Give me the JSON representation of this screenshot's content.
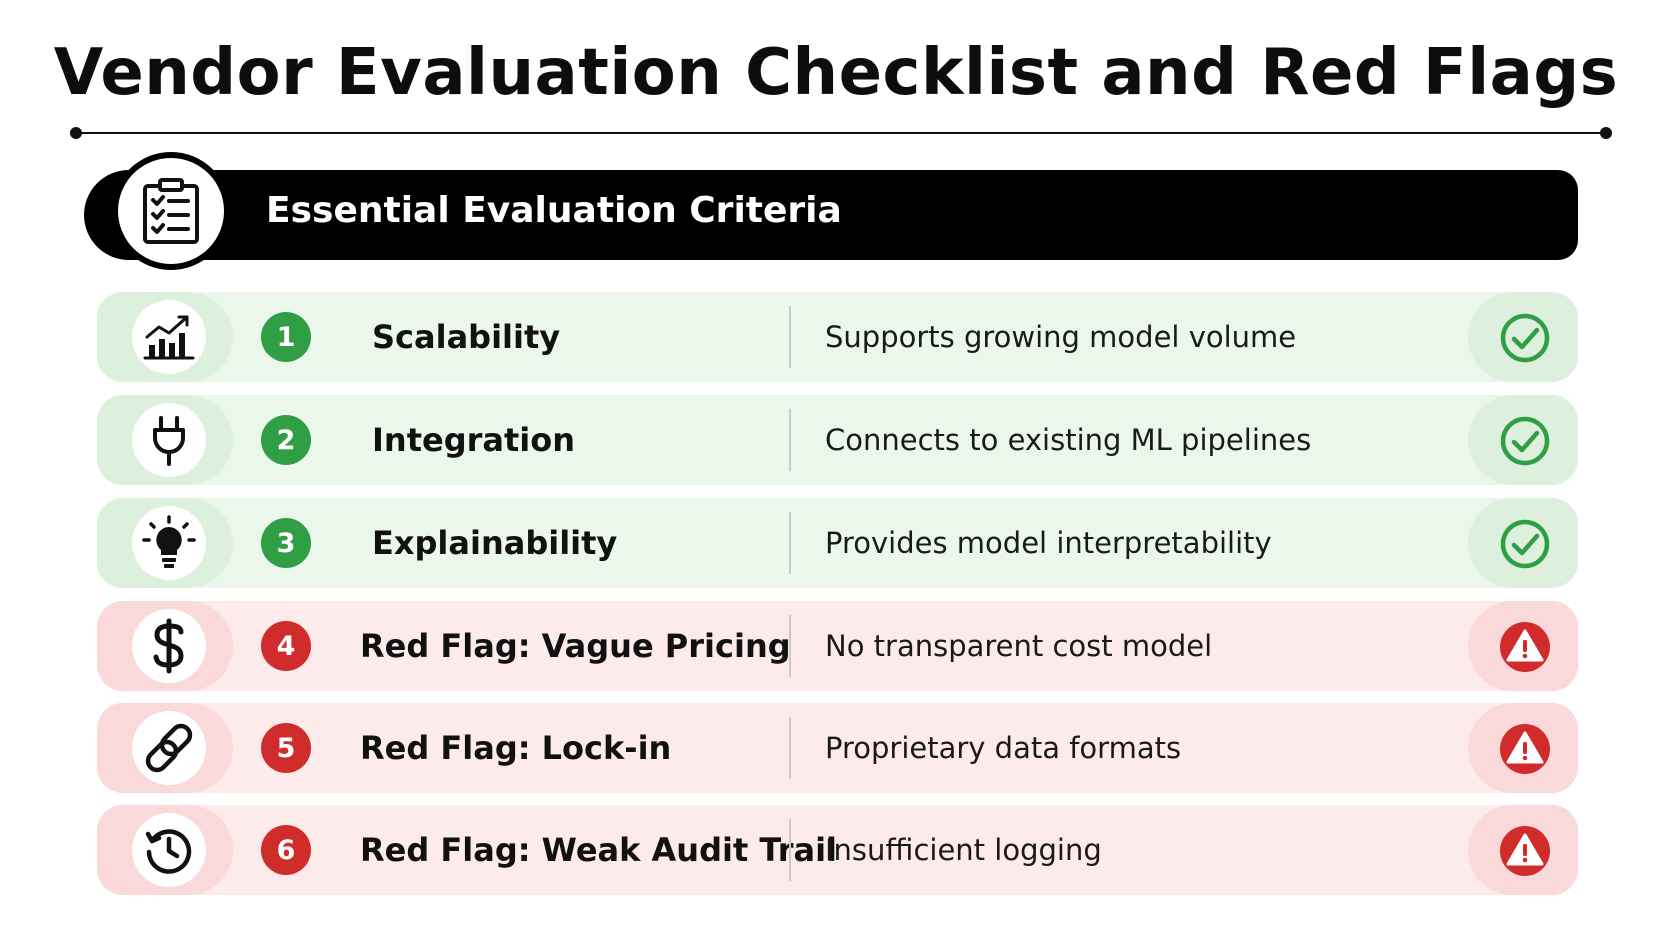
{
  "title": "Vendor Evaluation Checklist and Red Flags",
  "section": {
    "heading": "Essential Evaluation Criteria",
    "icon": "clipboard-checklist-icon"
  },
  "colors": {
    "good_accent": "#2f9e44",
    "good_row": "#ecf7ec",
    "flag_accent": "#d12c2c",
    "flag_row": "#fdeaea",
    "header_bar": "#000000"
  },
  "items": [
    {
      "number": "1",
      "label": "Scalability",
      "description": "Supports growing model volume",
      "status": "check",
      "icon": "growth-chart-icon",
      "kind": "criterion"
    },
    {
      "number": "2",
      "label": "Integration",
      "description": "Connects to existing ML pipelines",
      "status": "check",
      "icon": "plug-icon",
      "kind": "criterion"
    },
    {
      "number": "3",
      "label": "Explainability",
      "description": "Provides model interpretability",
      "status": "check",
      "icon": "lightbulb-icon",
      "kind": "criterion"
    },
    {
      "number": "4",
      "label": "Red Flag: Vague Pricing",
      "description": "No transparent cost model",
      "status": "warning",
      "icon": "dollar-icon",
      "kind": "red-flag"
    },
    {
      "number": "5",
      "label": "Red Flag: Lock-in",
      "description": "Proprietary data formats",
      "status": "warning",
      "icon": "chain-link-icon",
      "kind": "red-flag"
    },
    {
      "number": "6",
      "label": "Red Flag: Weak Audit Trail",
      "description": "Insufficient logging",
      "status": "warning",
      "icon": "history-icon",
      "kind": "red-flag"
    }
  ]
}
